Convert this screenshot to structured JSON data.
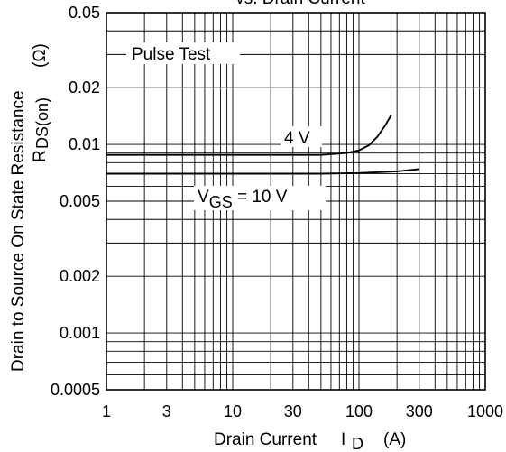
{
  "chart_data": {
    "type": "line",
    "title": "vs. Drain Current",
    "xlabel": {
      "main": "Drain Current",
      "symbol": "I",
      "subscript": "D",
      "unit": "(A)"
    },
    "ylabel": {
      "main": "Drain to Source On State Resistance",
      "symbol": "R",
      "subscript": "DS(on)",
      "unit": "(Ω)"
    },
    "x_scale": "log",
    "y_scale": "log",
    "xlim": [
      1,
      1000
    ],
    "ylim": [
      0.0005,
      0.05
    ],
    "grid": true,
    "x_ticks": [
      1,
      3,
      10,
      30,
      100,
      300,
      1000
    ],
    "x_tick_labels": [
      "1",
      "3",
      "10",
      "30",
      "100",
      "300",
      "1000"
    ],
    "y_ticks": [
      0.05,
      0.02,
      0.01,
      0.005,
      0.002,
      0.001,
      0.0005
    ],
    "y_tick_labels": [
      "0.05",
      "0.02",
      "0.01",
      "0.005",
      "0.002",
      "0.001",
      "0.0005"
    ],
    "annotations": {
      "pulse_test": "Pulse Test",
      "vgs4": "4 V",
      "vgs10_main": "V",
      "vgs10_sub": "GS",
      "vgs10_rest": " = 10 V"
    },
    "series": [
      {
        "name": "4 V",
        "x": [
          1,
          10,
          50,
          80,
          100,
          120,
          140,
          160,
          180
        ],
        "y": [
          0.0088,
          0.0088,
          0.0088,
          0.009,
          0.0093,
          0.0099,
          0.011,
          0.0125,
          0.0143
        ]
      },
      {
        "name": "V_GS = 10 V",
        "x": [
          1,
          10,
          50,
          100,
          200,
          300
        ],
        "y": [
          0.007,
          0.007,
          0.007,
          0.00705,
          0.0072,
          0.0074
        ]
      }
    ]
  }
}
